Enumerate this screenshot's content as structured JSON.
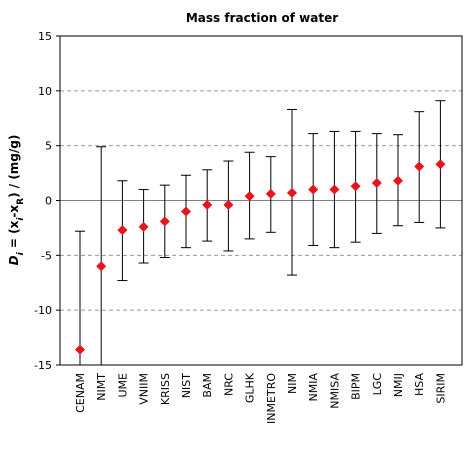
{
  "chart_data": {
    "type": "scatter",
    "title": "Mass fraction of water",
    "ylabel_parts": [
      "D",
      "i",
      " = (x",
      "i",
      "-x",
      "R",
      ") / (mg/g)"
    ],
    "ylim": [
      -15,
      15
    ],
    "yticks": [
      -15,
      -10,
      -5,
      0,
      5,
      10,
      15
    ],
    "ytick_labels": [
      "-15",
      "-10",
      "-5",
      "0",
      "5",
      "10",
      "15"
    ],
    "grid": "horizontal dashed at ±5, ±10; solid at 0",
    "marker_color": "#e8141c",
    "errorbar_color": "#000000",
    "categories": [
      "CENAM",
      "NIMT",
      "UME",
      "VNIIM",
      "KRISS",
      "NIST",
      "BAM",
      "NRC",
      "GLHK",
      "INMETRO",
      "NIM",
      "NMIA",
      "NMISA",
      "BIPM",
      "LGC",
      "NMIJ",
      "HSA",
      "SIRIM"
    ],
    "values": [
      -13.6,
      -6.0,
      -2.7,
      -2.4,
      -1.9,
      -1.0,
      -0.4,
      -0.4,
      0.4,
      0.6,
      0.7,
      1.0,
      1.0,
      1.3,
      1.6,
      1.8,
      3.1,
      3.3
    ],
    "error_low": [
      -2.8,
      -15.0,
      -7.3,
      -5.7,
      -5.2,
      -4.3,
      -3.7,
      -4.6,
      -3.5,
      -2.9,
      -6.8,
      -4.1,
      -4.3,
      -3.8,
      -3.0,
      -2.3,
      -2.0,
      -2.5
    ],
    "error_high": [
      -15.0,
      4.9,
      1.8,
      1.0,
      1.4,
      2.3,
      2.8,
      3.6,
      4.4,
      4.0,
      8.3,
      6.1,
      6.3,
      6.3,
      6.1,
      6.0,
      8.1,
      9.1
    ]
  }
}
